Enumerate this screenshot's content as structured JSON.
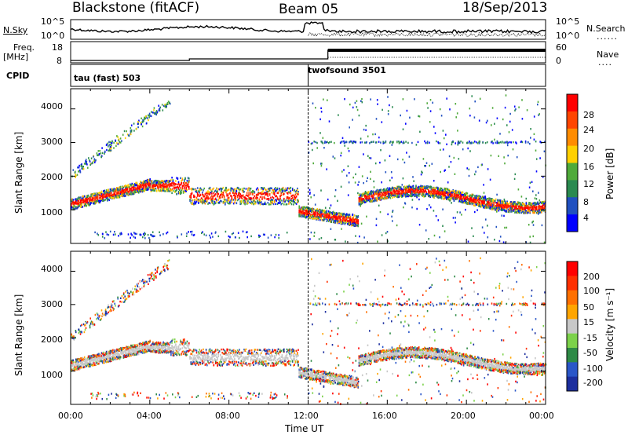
{
  "header": {
    "radar": "Blackstone (fitACF)",
    "beam": "Beam 05",
    "date": "18/Sep/2013"
  },
  "top_panels": {
    "nsky_label": "N.Sky",
    "nsky_ticks": [
      "10^5",
      "10^0"
    ],
    "nsearch_label": "N.Search",
    "nsearch_ticks": [
      "10^5",
      "10^0"
    ],
    "freq_label_1": "Freq.",
    "freq_label_2": "[MHz]",
    "freq_ticks": [
      "18",
      "8"
    ],
    "nave_label": "Nave",
    "nave_ticks": [
      "60",
      "0"
    ],
    "cpid_label": "CPID",
    "cpid_1": "tau (fast) 503",
    "cpid_2": "twofsound 3501"
  },
  "chart_data": [
    {
      "type": "heatmap",
      "panel": "power",
      "ylabel": "Slant Range [km]",
      "y_ticks": [
        1000,
        2000,
        3000,
        4000
      ],
      "ylim": [
        0,
        4600
      ],
      "x_ticks": [
        "00:00",
        "04:00",
        "08:00",
        "12:00",
        "16:00",
        "20:00",
        "00:00"
      ],
      "xlim_hours": [
        0,
        24
      ],
      "colorbar_label": "Power [dB]",
      "colorbar_ticks": [
        "28",
        "24",
        "20",
        "16",
        "12",
        "8",
        "4"
      ],
      "colors": [
        "#0000ff",
        "#2050c0",
        "#2a8a50",
        "#4faa3a",
        "#ffd000",
        "#ff8c00",
        "#ff4500",
        "#ff0000"
      ]
    },
    {
      "type": "heatmap",
      "panel": "velocity",
      "ylabel": "Slant Range [km]",
      "y_ticks": [
        1000,
        2000,
        3000,
        4000
      ],
      "ylim": [
        0,
        4600
      ],
      "x_ticks": [
        "00:00",
        "04:00",
        "08:00",
        "12:00",
        "16:00",
        "20:00",
        "00:00"
      ],
      "xlim_hours": [
        0,
        24
      ],
      "xlabel": "Time UT",
      "colorbar_label": "Velocity [m s⁻¹]",
      "colorbar_ticks": [
        "200",
        "100",
        "50",
        "15",
        "-15",
        "-50",
        "-100",
        "-200"
      ],
      "colors": [
        "#1c2e9e",
        "#2a56c8",
        "#2e8a46",
        "#7cd24a",
        "#c8c8c8",
        "#ffa500",
        "#ff7000",
        "#ff3000",
        "#ff0000"
      ]
    }
  ]
}
